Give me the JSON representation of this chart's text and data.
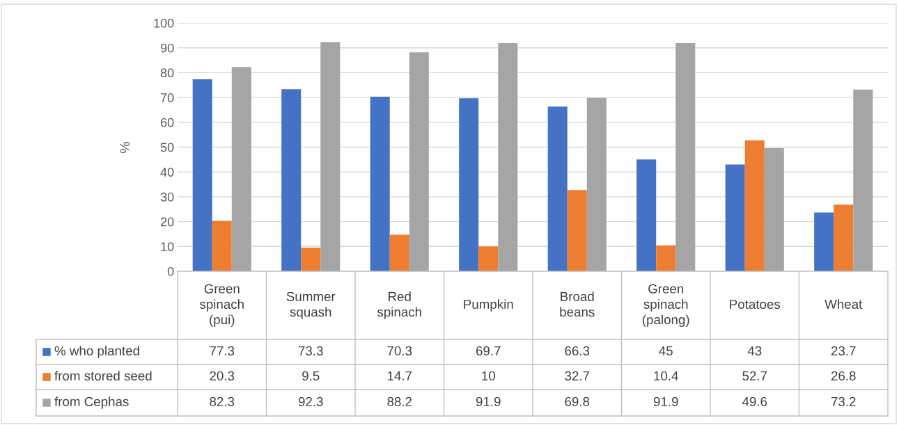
{
  "chart_data": {
    "type": "bar",
    "ylabel": "%",
    "categories": [
      "Green spinach (pui)",
      "Summer squash",
      "Red spinach",
      "Pumpkin",
      "Broad beans",
      "Green spinach (palong)",
      "Potatoes",
      "Wheat"
    ],
    "series": [
      {
        "name": "% who planted",
        "color": "#4472c4",
        "values": [
          77.3,
          73.3,
          70.3,
          69.7,
          66.3,
          45,
          43,
          23.7
        ]
      },
      {
        "name": "from stored seed",
        "color": "#ed7d31",
        "values": [
          20.3,
          9.5,
          14.7,
          10,
          32.7,
          10.4,
          52.7,
          26.8
        ]
      },
      {
        "name": "from Cephas",
        "color": "#a5a5a5",
        "values": [
          82.3,
          92.3,
          88.2,
          91.9,
          69.8,
          91.9,
          49.6,
          73.2
        ]
      }
    ],
    "ylim": [
      0,
      100
    ],
    "yticks": [
      0,
      10,
      20,
      30,
      40,
      50,
      60,
      70,
      80,
      90,
      100
    ],
    "grid": "y",
    "legend": "bottom",
    "data_labels": true
  }
}
